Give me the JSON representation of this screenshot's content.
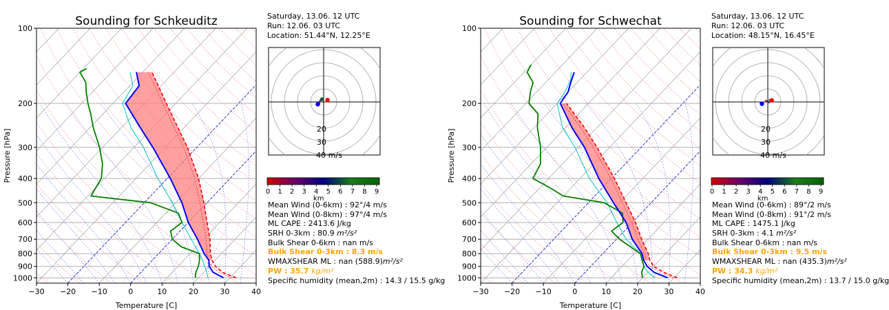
{
  "colors": {
    "temperature": "#0000ff",
    "dewpoint": "#008000",
    "wetbulb": "#00bfbf",
    "parcel": "#ff0000",
    "cape_fill": "#ff8080",
    "highlight": "#ffa500",
    "hodo_colormap": [
      "#d40000",
      "#6a006a",
      "#000080",
      "#1a7f1a",
      "#006400"
    ]
  },
  "hodo_colorbar_ticks": [
    "0",
    "1",
    "2",
    "3",
    "4",
    "5",
    "6",
    "7",
    "8",
    "9"
  ],
  "hodo_colorbar_unit": "km",
  "hodo_ring_labels": [
    "20",
    "30",
    "40 m/s"
  ],
  "charts": [
    {
      "title": "Sounding for Schkeuditz",
      "info_lines": [
        "Saturday, 13.06. 12 UTC",
        "Run: 12.06. 03 UTC",
        "Location: 51.44°N, 12.25°E"
      ],
      "stats": {
        "mean_wind_6": "Mean Wind (0-6km) :  92°/4 m/s",
        "mean_wind_8": "Mean Wind (0-8km) :  97°/4 m/s",
        "ml_cape": "ML CAPE : 2413.6 J/kg",
        "srh_label": "SRH 0-3km : 80.9 ",
        "bulk_06": "Bulk Shear 0-6km : nan m/s",
        "bulk_03": "Bulk Shear 0-3km : 8.3 m/s",
        "wmax_label": "WMAXSHEAR ML : nan (588.9)",
        "pw_label": "PW : 35.7 ",
        "spec_hum": "Specific humidity (mean,2m) : 14.3 / 15.5 g/kg"
      },
      "units": {
        "m2s2": "m²/s²",
        "kgm2": "kg/m²"
      },
      "hodograph": {
        "trace": [
          [
            -3,
            -1.5
          ],
          [
            -3.6,
            -0.3
          ],
          [
            -2.8,
            0.8
          ],
          [
            -1.6,
            1.6
          ],
          [
            -0.7,
            2.5
          ],
          [
            -1.3,
            3.2
          ],
          [
            -2.4,
            2.2
          ],
          [
            -1.7,
            1.3
          ],
          [
            -0.6,
            1.2
          ]
        ],
        "storm_right": [
          3,
          1.5
        ],
        "storm_left": [
          -4.5,
          -1.8
        ]
      },
      "chart_data": {
        "type": "line",
        "title": "Sounding for Schkeuditz",
        "xlabel": "Temperature [C]",
        "ylabel": "Pressure [hPa]",
        "xlim": [
          -30,
          40
        ],
        "ylim": [
          1000,
          100
        ],
        "yscale": "log",
        "x_ticks": [
          "−30",
          "−20",
          "−10",
          "0",
          "10",
          "20",
          "30",
          "40"
        ],
        "y_ticks": [
          "100",
          "200",
          "300",
          "400",
          "500",
          "600",
          "700",
          "800",
          "900",
          "1000"
        ],
        "skew": true,
        "series": [
          {
            "name": "Temperature",
            "color": "#0000ff",
            "points": [
              [
                1000,
                28
              ],
              [
                950,
                23
              ],
              [
                900,
                20
              ],
              [
                850,
                18
              ],
              [
                800,
                14.5
              ],
              [
                700,
                8
              ],
              [
                600,
                0
              ],
              [
                500,
                -8
              ],
              [
                400,
                -19
              ],
              [
                300,
                -34
              ],
              [
                250,
                -44
              ],
              [
                200,
                -56
              ],
              [
                170,
                -57
              ],
              [
                150,
                -62
              ]
            ]
          },
          {
            "name": "Wet-bulb",
            "color": "#00bfbf",
            "points": [
              [
                1000,
                23
              ],
              [
                950,
                21
              ],
              [
                900,
                18.5
              ],
              [
                850,
                16
              ],
              [
                800,
                13
              ],
              [
                700,
                6
              ],
              [
                600,
                -2
              ],
              [
                500,
                -11
              ],
              [
                400,
                -23
              ],
              [
                300,
                -37
              ],
              [
                250,
                -47
              ],
              [
                200,
                -57
              ],
              [
                170,
                -59
              ],
              [
                150,
                -64
              ]
            ]
          },
          {
            "name": "Dewpoint",
            "color": "#008000",
            "points": [
              [
                1000,
                19
              ],
              [
                950,
                17.5
              ],
              [
                900,
                16.5
              ],
              [
                850,
                15
              ],
              [
                800,
                13
              ],
              [
                750,
                5
              ],
              [
                700,
                0
              ],
              [
                650,
                -3
              ],
              [
                600,
                -2
              ],
              [
                550,
                -6
              ],
              [
                500,
                -18
              ],
              [
                470,
                -39
              ],
              [
                400,
                -41
              ],
              [
                350,
                -45
              ],
              [
                300,
                -51
              ],
              [
                250,
                -59
              ],
              [
                220,
                -64
              ],
              [
                200,
                -68
              ],
              [
                180,
                -72
              ],
              [
                165,
                -75
              ],
              [
                150,
                -80
              ],
              [
                145,
                -79
              ]
            ]
          },
          {
            "name": "Parcel",
            "color": "#ff0000",
            "points": [
              [
                1000,
                32
              ],
              [
                950,
                26
              ],
              [
                900,
                22
              ],
              [
                850,
                19
              ],
              [
                800,
                16.5
              ],
              [
                700,
                12
              ],
              [
                600,
                6
              ],
              [
                500,
                -1
              ],
              [
                400,
                -10
              ],
              [
                300,
                -23
              ],
              [
                250,
                -32
              ],
              [
                200,
                -43
              ],
              [
                150,
                -57
              ]
            ]
          }
        ]
      }
    },
    {
      "title": "Sounding for Schwechat",
      "info_lines": [
        "Saturday, 13.06. 12 UTC",
        "Run: 12.06. 03 UTC",
        "Location: 48.15°N, 16.45°E"
      ],
      "stats": {
        "mean_wind_6": "Mean Wind (0-6km) :  89°/2 m/s",
        "mean_wind_8": "Mean Wind (0-8km) :  91°/2 m/s",
        "ml_cape": "ML CAPE : 1475.1 J/kg",
        "srh_label": "SRH 0-3km : 4.1 ",
        "bulk_06": "Bulk Shear 0-6km : nan m/s",
        "bulk_03": "Bulk Shear 0-3km : 9.5 m/s",
        "wmax_label": "WMAXSHEAR ML : nan (435.3)",
        "pw_label": "PW : 34.3 ",
        "spec_hum": "Specific humidity (mean,2m) : 13.7 / 15.0 g/kg"
      },
      "units": {
        "m2s2": "m²/s²",
        "kgm2": "kg/m²"
      },
      "hodograph": {
        "trace": [
          [
            -1.6,
            1.2
          ],
          [
            -0.8,
            0.6
          ],
          [
            0,
            0.1
          ],
          [
            0.6,
            -0.3
          ],
          [
            1.2,
            -0.4
          ],
          [
            1.4,
            0.5
          ],
          [
            1.2,
            1.5
          ],
          [
            2.2,
            1.2
          ],
          [
            2.8,
            1.5
          ]
        ],
        "storm_right": [
          3,
          1.2
        ],
        "storm_left": [
          -4.5,
          -1.4
        ]
      },
      "chart_data": {
        "type": "line",
        "title": "Sounding for Schwechat",
        "xlabel": "Temperature [C]",
        "ylabel": "Pressure [hPa]",
        "xlim": [
          -30,
          40
        ],
        "ylim": [
          1000,
          100
        ],
        "yscale": "log",
        "x_ticks": [
          "−30",
          "−20",
          "−10",
          "0",
          "10",
          "20",
          "30",
          "40"
        ],
        "y_ticks": [
          "100",
          "200",
          "300",
          "400",
          "500",
          "600",
          "700",
          "800",
          "900",
          "1000"
        ],
        "skew": true,
        "series": [
          {
            "name": "Temperature",
            "color": "#0000ff",
            "points": [
              [
                1000,
                28
              ],
              [
                950,
                22
              ],
              [
                900,
                18
              ],
              [
                850,
                15
              ],
              [
                800,
                12.5
              ],
              [
                700,
                5
              ],
              [
                600,
                -2
              ],
              [
                500,
                -12
              ],
              [
                400,
                -24
              ],
              [
                300,
                -38
              ],
              [
                250,
                -48
              ],
              [
                200,
                -59
              ],
              [
                180,
                -60
              ],
              [
                165,
                -62
              ],
              [
                150,
                -64
              ]
            ]
          },
          {
            "name": "Wet-bulb",
            "color": "#00bfbf",
            "points": [
              [
                1000,
                24
              ],
              [
                950,
                20
              ],
              [
                900,
                17
              ],
              [
                850,
                14.5
              ],
              [
                800,
                12
              ],
              [
                700,
                3
              ],
              [
                600,
                -5
              ],
              [
                500,
                -14
              ],
              [
                400,
                -27
              ],
              [
                300,
                -41
              ],
              [
                250,
                -51
              ],
              [
                200,
                -60
              ],
              [
                180,
                -61
              ],
              [
                160,
                -63
              ],
              [
                150,
                -65
              ]
            ]
          },
          {
            "name": "Dewpoint",
            "color": "#008000",
            "points": [
              [
                1000,
                20
              ],
              [
                950,
                18
              ],
              [
                900,
                17
              ],
              [
                850,
                14.5
              ],
              [
                800,
                12
              ],
              [
                700,
                1
              ],
              [
                650,
                -4
              ],
              [
                600,
                -3
              ],
              [
                550,
                -6
              ],
              [
                500,
                -15
              ],
              [
                470,
                -30
              ],
              [
                430,
                -38
              ],
              [
                400,
                -45
              ],
              [
                350,
                -47
              ],
              [
                300,
                -52
              ],
              [
                250,
                -59
              ],
              [
                220,
                -63
              ],
              [
                200,
                -69
              ],
              [
                180,
                -72
              ],
              [
                165,
                -74
              ],
              [
                150,
                -79
              ],
              [
                140,
                -80
              ]
            ]
          },
          {
            "name": "Parcel",
            "color": "#ff0000",
            "points": [
              [
                1000,
                31
              ],
              [
                950,
                25
              ],
              [
                900,
                20
              ],
              [
                850,
                17
              ],
              [
                800,
                14.5
              ],
              [
                700,
                8
              ],
              [
                600,
                1
              ],
              [
                500,
                -8
              ],
              [
                400,
                -19
              ],
              [
                300,
                -34
              ],
              [
                250,
                -44
              ],
              [
                200,
                -57
              ]
            ]
          }
        ]
      }
    }
  ]
}
